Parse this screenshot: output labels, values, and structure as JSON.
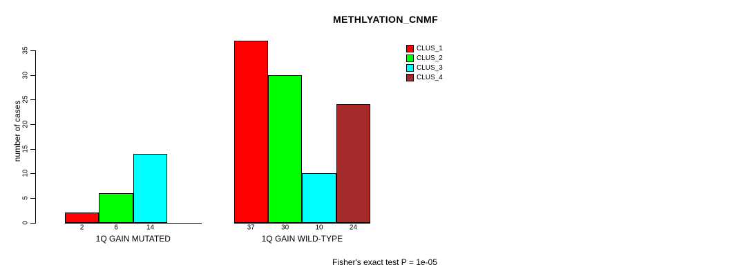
{
  "chart_data": {
    "type": "bar",
    "title": "METHLYATION_CNMF",
    "ylabel": "number of cases",
    "xlabel": "",
    "footer": "Fisher's exact test P = 1e-05",
    "ylim": [
      0,
      35
    ],
    "yticks": [
      0,
      5,
      10,
      15,
      20,
      25,
      30,
      35
    ],
    "grid": false,
    "legend_position": "top-right",
    "series": [
      {
        "name": "CLUS_1",
        "color": "#ff0000"
      },
      {
        "name": "CLUS_2",
        "color": "#00ff00"
      },
      {
        "name": "CLUS_3",
        "color": "#00ffff"
      },
      {
        "name": "CLUS_4",
        "color": "#a52a2a"
      }
    ],
    "groups": [
      {
        "label": "1Q GAIN MUTATED",
        "values": [
          2,
          6,
          14,
          null
        ],
        "bar_labels": [
          "2",
          "6",
          "14",
          ""
        ]
      },
      {
        "label": "1Q GAIN WILD-TYPE",
        "values": [
          37,
          30,
          10,
          24
        ],
        "bar_labels": [
          "37",
          "30",
          "10",
          "24"
        ]
      }
    ]
  }
}
